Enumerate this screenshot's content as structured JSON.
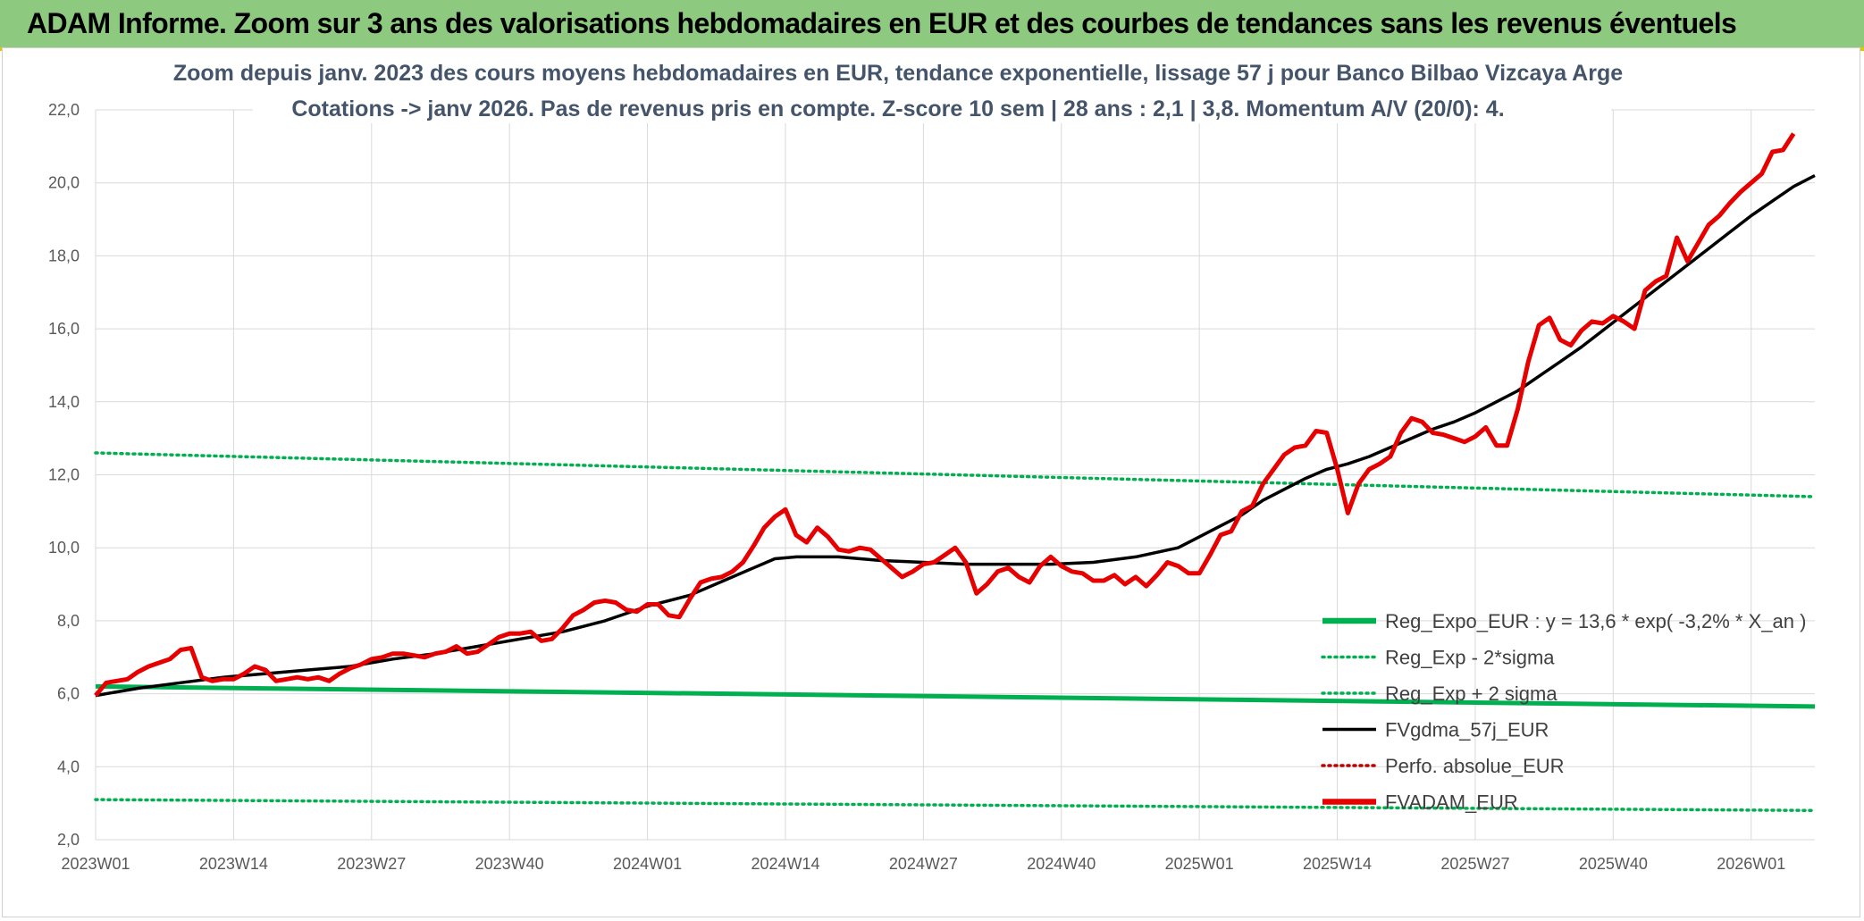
{
  "header": {
    "title": "ADAM Informe. Zoom sur 3 ans des valorisations hebdomadaires en EUR et des courbes de tendances sans les revenus éventuels"
  },
  "chart_data": {
    "type": "line",
    "title": [
      "Zoom depuis janv. 2023 des cours moyens hebdomadaires en EUR, tendance exponentielle, lissage 57 j pour Banco Bilbao Vizcaya Arge",
      "Cotations -> janv 2026. Pas de revenus pris en compte. Z-score 10 sem | 28 ans : 2,1  | 3,8. Momentum A/V (20/0): 4."
    ],
    "xlabel": "",
    "ylabel": "",
    "ylim": [
      2,
      22
    ],
    "yticks": [
      "2,0",
      "4,0",
      "6,0",
      "8,0",
      "10,0",
      "12,0",
      "14,0",
      "16,0",
      "18,0",
      "20,0",
      "22,0"
    ],
    "x_range": [
      0,
      162
    ],
    "xticks": [
      {
        "label": "2023W01",
        "x": 0
      },
      {
        "label": "2023W14",
        "x": 13
      },
      {
        "label": "2023W27",
        "x": 26
      },
      {
        "label": "2023W40",
        "x": 39
      },
      {
        "label": "2024W01",
        "x": 52
      },
      {
        "label": "2024W14",
        "x": 65
      },
      {
        "label": "2024W27",
        "x": 78
      },
      {
        "label": "2024W40",
        "x": 91
      },
      {
        "label": "2025W01",
        "x": 104
      },
      {
        "label": "2025W14",
        "x": 117
      },
      {
        "label": "2025W27",
        "x": 130
      },
      {
        "label": "2025W40",
        "x": 143
      },
      {
        "label": "2026W01",
        "x": 156
      }
    ],
    "grid": true,
    "legend_position": "bottom-right",
    "series": [
      {
        "name": "Reg_Expo_EUR : y = 13,6 * exp( -3,2% *  X_an )",
        "style": "solid-thick",
        "color": "#00b050",
        "points": [
          [
            0,
            6.2
          ],
          [
            162,
            5.65
          ]
        ]
      },
      {
        "name": "Reg_Exp - 2*sigma",
        "style": "dotted",
        "color": "#00b050",
        "points": [
          [
            0,
            3.1
          ],
          [
            162,
            2.8
          ]
        ]
      },
      {
        "name": "Reg_Exp + 2 sigma",
        "style": "dotted",
        "color": "#00b050",
        "points": [
          [
            0,
            12.6
          ],
          [
            162,
            11.4
          ]
        ]
      },
      {
        "name": "FVgdma_57j_EUR",
        "style": "solid",
        "color": "#000000",
        "points": [
          [
            0,
            5.95
          ],
          [
            4,
            6.15
          ],
          [
            8,
            6.3
          ],
          [
            12,
            6.45
          ],
          [
            16,
            6.55
          ],
          [
            20,
            6.65
          ],
          [
            24,
            6.75
          ],
          [
            28,
            6.95
          ],
          [
            32,
            7.1
          ],
          [
            36,
            7.3
          ],
          [
            40,
            7.5
          ],
          [
            44,
            7.7
          ],
          [
            48,
            8.0
          ],
          [
            52,
            8.4
          ],
          [
            56,
            8.7
          ],
          [
            60,
            9.2
          ],
          [
            62,
            9.45
          ],
          [
            64,
            9.7
          ],
          [
            66,
            9.75
          ],
          [
            70,
            9.75
          ],
          [
            74,
            9.65
          ],
          [
            78,
            9.6
          ],
          [
            82,
            9.55
          ],
          [
            86,
            9.55
          ],
          [
            90,
            9.55
          ],
          [
            94,
            9.6
          ],
          [
            98,
            9.75
          ],
          [
            102,
            10.0
          ],
          [
            104,
            10.3
          ],
          [
            106,
            10.6
          ],
          [
            108,
            10.9
          ],
          [
            110,
            11.3
          ],
          [
            112,
            11.6
          ],
          [
            114,
            11.9
          ],
          [
            116,
            12.15
          ],
          [
            118,
            12.3
          ],
          [
            120,
            12.5
          ],
          [
            122,
            12.75
          ],
          [
            124,
            13.0
          ],
          [
            126,
            13.25
          ],
          [
            128,
            13.45
          ],
          [
            130,
            13.7
          ],
          [
            132,
            14.0
          ],
          [
            134,
            14.3
          ],
          [
            136,
            14.7
          ],
          [
            138,
            15.1
          ],
          [
            140,
            15.5
          ],
          [
            142,
            15.95
          ],
          [
            144,
            16.4
          ],
          [
            146,
            16.85
          ],
          [
            148,
            17.3
          ],
          [
            150,
            17.75
          ],
          [
            152,
            18.2
          ],
          [
            154,
            18.65
          ],
          [
            156,
            19.1
          ],
          [
            158,
            19.5
          ],
          [
            160,
            19.9
          ],
          [
            162,
            20.2
          ]
        ]
      },
      {
        "name": "Perfo. absolue_EUR",
        "style": "dotted",
        "color": "#c00000",
        "points": []
      },
      {
        "name": "FVADAM_EUR",
        "style": "solid-thick",
        "color": "#e60000",
        "points": [
          [
            0,
            5.95
          ],
          [
            1,
            6.3
          ],
          [
            2,
            6.35
          ],
          [
            3,
            6.4
          ],
          [
            4,
            6.6
          ],
          [
            5,
            6.75
          ],
          [
            6,
            6.85
          ],
          [
            7,
            6.95
          ],
          [
            8,
            7.2
          ],
          [
            9,
            7.25
          ],
          [
            10,
            6.45
          ],
          [
            11,
            6.35
          ],
          [
            12,
            6.4
          ],
          [
            13,
            6.4
          ],
          [
            14,
            6.55
          ],
          [
            15,
            6.75
          ],
          [
            16,
            6.65
          ],
          [
            17,
            6.35
          ],
          [
            18,
            6.4
          ],
          [
            19,
            6.45
          ],
          [
            20,
            6.4
          ],
          [
            21,
            6.45
          ],
          [
            22,
            6.35
          ],
          [
            23,
            6.55
          ],
          [
            24,
            6.7
          ],
          [
            25,
            6.8
          ],
          [
            26,
            6.95
          ],
          [
            27,
            7.0
          ],
          [
            28,
            7.1
          ],
          [
            29,
            7.1
          ],
          [
            30,
            7.05
          ],
          [
            31,
            7.0
          ],
          [
            32,
            7.1
          ],
          [
            33,
            7.15
          ],
          [
            34,
            7.3
          ],
          [
            35,
            7.1
          ],
          [
            36,
            7.15
          ],
          [
            37,
            7.35
          ],
          [
            38,
            7.55
          ],
          [
            39,
            7.65
          ],
          [
            40,
            7.65
          ],
          [
            41,
            7.7
          ],
          [
            42,
            7.45
          ],
          [
            43,
            7.5
          ],
          [
            44,
            7.8
          ],
          [
            45,
            8.15
          ],
          [
            46,
            8.3
          ],
          [
            47,
            8.5
          ],
          [
            48,
            8.55
          ],
          [
            49,
            8.5
          ],
          [
            50,
            8.3
          ],
          [
            51,
            8.25
          ],
          [
            52,
            8.45
          ],
          [
            53,
            8.45
          ],
          [
            54,
            8.15
          ],
          [
            55,
            8.1
          ],
          [
            56,
            8.6
          ],
          [
            57,
            9.05
          ],
          [
            58,
            9.15
          ],
          [
            59,
            9.2
          ],
          [
            60,
            9.35
          ],
          [
            61,
            9.6
          ],
          [
            62,
            10.05
          ],
          [
            63,
            10.55
          ],
          [
            64,
            10.85
          ],
          [
            65,
            11.05
          ],
          [
            66,
            10.35
          ],
          [
            67,
            10.15
          ],
          [
            68,
            10.55
          ],
          [
            69,
            10.3
          ],
          [
            70,
            9.95
          ],
          [
            71,
            9.9
          ],
          [
            72,
            10.0
          ],
          [
            73,
            9.95
          ],
          [
            74,
            9.7
          ],
          [
            75,
            9.45
          ],
          [
            76,
            9.2
          ],
          [
            77,
            9.35
          ],
          [
            78,
            9.55
          ],
          [
            79,
            9.6
          ],
          [
            80,
            9.8
          ],
          [
            81,
            10.0
          ],
          [
            82,
            9.6
          ],
          [
            83,
            8.75
          ],
          [
            84,
            9.0
          ],
          [
            85,
            9.35
          ],
          [
            86,
            9.45
          ],
          [
            87,
            9.2
          ],
          [
            88,
            9.05
          ],
          [
            89,
            9.5
          ],
          [
            90,
            9.75
          ],
          [
            91,
            9.5
          ],
          [
            92,
            9.35
          ],
          [
            93,
            9.3
          ],
          [
            94,
            9.1
          ],
          [
            95,
            9.1
          ],
          [
            96,
            9.25
          ],
          [
            97,
            9.0
          ],
          [
            98,
            9.2
          ],
          [
            99,
            8.95
          ],
          [
            100,
            9.25
          ],
          [
            101,
            9.6
          ],
          [
            102,
            9.5
          ],
          [
            103,
            9.3
          ],
          [
            104,
            9.3
          ],
          [
            105,
            9.8
          ],
          [
            106,
            10.35
          ],
          [
            107,
            10.45
          ],
          [
            108,
            11.0
          ],
          [
            109,
            11.15
          ],
          [
            110,
            11.75
          ],
          [
            111,
            12.15
          ],
          [
            112,
            12.55
          ],
          [
            113,
            12.75
          ],
          [
            114,
            12.8
          ],
          [
            115,
            13.2
          ],
          [
            116,
            13.15
          ],
          [
            117,
            12.15
          ],
          [
            118,
            10.95
          ],
          [
            119,
            11.75
          ],
          [
            120,
            12.15
          ],
          [
            121,
            12.3
          ],
          [
            122,
            12.5
          ],
          [
            123,
            13.15
          ],
          [
            124,
            13.55
          ],
          [
            125,
            13.45
          ],
          [
            126,
            13.15
          ],
          [
            127,
            13.1
          ],
          [
            128,
            13.0
          ],
          [
            129,
            12.9
          ],
          [
            130,
            13.05
          ],
          [
            131,
            13.3
          ],
          [
            132,
            12.8
          ],
          [
            133,
            12.8
          ],
          [
            134,
            13.8
          ],
          [
            135,
            15.1
          ],
          [
            136,
            16.1
          ],
          [
            137,
            16.3
          ],
          [
            138,
            15.7
          ],
          [
            139,
            15.55
          ],
          [
            140,
            15.95
          ],
          [
            141,
            16.2
          ],
          [
            142,
            16.15
          ],
          [
            143,
            16.35
          ],
          [
            144,
            16.2
          ],
          [
            145,
            16.0
          ],
          [
            146,
            17.05
          ],
          [
            147,
            17.3
          ],
          [
            148,
            17.45
          ],
          [
            149,
            18.5
          ],
          [
            150,
            17.85
          ],
          [
            151,
            18.35
          ],
          [
            152,
            18.85
          ],
          [
            153,
            19.1
          ],
          [
            154,
            19.45
          ],
          [
            155,
            19.75
          ],
          [
            156,
            20.0
          ],
          [
            157,
            20.25
          ],
          [
            158,
            20.85
          ],
          [
            159,
            20.9
          ],
          [
            160,
            21.35
          ]
        ]
      }
    ]
  }
}
